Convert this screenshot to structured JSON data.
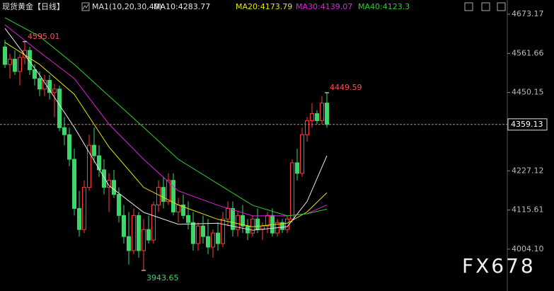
{
  "chart_data": {
    "type": "candlestick",
    "title": "现货黄金【日线】",
    "indicator": "MA1(10,20,30,40)",
    "ylim": [
      3885,
      4713.5
    ],
    "yticks": [
      {
        "value": 4673.17,
        "label": "4673.17"
      },
      {
        "value": 4561.66,
        "label": "4561.66"
      },
      {
        "value": 4450.15,
        "label": "4450.15"
      },
      {
        "value": 4227.12,
        "label": "4227.12"
      },
      {
        "value": 4115.61,
        "label": "4115.61"
      },
      {
        "value": 4004.1,
        "label": "4004.10"
      }
    ],
    "last_price": 4359.13,
    "up_color": "#ff3b3b",
    "down_color": "#3dd66b",
    "ohlc": [
      [
        4580,
        4600,
        4520,
        4530
      ],
      [
        4530,
        4560,
        4490,
        4545
      ],
      [
        4545,
        4570,
        4500,
        4510
      ],
      [
        4510,
        4560,
        4470,
        4550
      ],
      [
        4550,
        4595.01,
        4530,
        4570
      ],
      [
        4570,
        4580,
        4500,
        4515
      ],
      [
        4515,
        4530,
        4470,
        4490
      ],
      [
        4490,
        4510,
        4440,
        4460
      ],
      [
        4460,
        4500,
        4440,
        4485
      ],
      [
        4485,
        4500,
        4430,
        4450
      ],
      [
        4450,
        4475,
        4380,
        4460
      ],
      [
        4460,
        4470,
        4340,
        4350
      ],
      [
        4350,
        4380,
        4300,
        4330
      ],
      [
        4330,
        4350,
        4240,
        4260
      ],
      [
        4260,
        4290,
        4100,
        4120
      ],
      [
        4120,
        4170,
        4040,
        4060
      ],
      [
        4060,
        4200,
        4050,
        4180
      ],
      [
        4180,
        4330,
        4170,
        4300
      ],
      [
        4300,
        4350,
        4250,
        4270
      ],
      [
        4270,
        4300,
        4210,
        4230
      ],
      [
        4230,
        4260,
        4160,
        4180
      ],
      [
        4180,
        4220,
        4110,
        4200
      ],
      [
        4200,
        4230,
        4150,
        4160
      ],
      [
        4160,
        4180,
        4080,
        4100
      ],
      [
        4100,
        4130,
        4020,
        4040
      ],
      [
        4040,
        4110,
        3960,
        4000
      ],
      [
        4000,
        4120,
        3990,
        4100
      ],
      [
        4100,
        4110,
        3980,
        4000
      ],
      [
        4000,
        4090,
        3943.65,
        4060
      ],
      [
        4060,
        4100,
        4020,
        4030
      ],
      [
        4030,
        4140,
        4020,
        4130
      ],
      [
        4130,
        4200,
        4110,
        4180
      ],
      [
        4180,
        4210,
        4120,
        4140
      ],
      [
        4140,
        4220,
        4130,
        4200
      ],
      [
        4200,
        4220,
        4100,
        4110
      ],
      [
        4110,
        4150,
        4080,
        4130
      ],
      [
        4130,
        4160,
        4090,
        4100
      ],
      [
        4100,
        4140,
        4060,
        4080
      ],
      [
        4080,
        4110,
        4000,
        4020
      ],
      [
        4020,
        4080,
        4000,
        4070
      ],
      [
        4070,
        4100,
        4020,
        4040
      ],
      [
        4040,
        4090,
        3990,
        4010
      ],
      [
        4010,
        4060,
        3980,
        4050
      ],
      [
        4050,
        4080,
        4000,
        4020
      ],
      [
        4020,
        4110,
        4010,
        4090
      ],
      [
        4090,
        4140,
        4070,
        4120
      ],
      [
        4120,
        4140,
        4040,
        4060
      ],
      [
        4060,
        4110,
        4040,
        4100
      ],
      [
        4100,
        4130,
        4050,
        4070
      ],
      [
        4070,
        4090,
        4030,
        4050
      ],
      [
        4050,
        4100,
        4040,
        4090
      ],
      [
        4090,
        4120,
        4050,
        4060
      ],
      [
        4060,
        4080,
        4030,
        4070
      ],
      [
        4070,
        4110,
        4050,
        4100
      ],
      [
        4100,
        4120,
        4040,
        4050
      ],
      [
        4050,
        4090,
        4040,
        4080
      ],
      [
        4080,
        4090,
        4050,
        4060
      ],
      [
        4060,
        4100,
        4050,
        4090
      ],
      [
        4090,
        4260,
        4080,
        4250
      ],
      [
        4250,
        4290,
        4200,
        4220
      ],
      [
        4220,
        4350,
        4210,
        4330
      ],
      [
        4330,
        4380,
        4310,
        4370
      ],
      [
        4370,
        4420,
        4350,
        4390
      ],
      [
        4390,
        4400,
        4360,
        4370
      ],
      [
        4370,
        4440,
        4360,
        4420
      ],
      [
        4420,
        4449.59,
        4350,
        4359.13
      ]
    ],
    "x": [
      0,
      7,
      14,
      21,
      28,
      35,
      43,
      50,
      57,
      61,
      65
    ],
    "series": [
      {
        "name": "MA10:4283.77",
        "color": "#e8e8e8",
        "values": [
          4633,
          4500,
          4351,
          4185,
          4109,
          4075,
          4078,
          4058,
          4068,
          4140,
          4270
        ]
      },
      {
        "name": "MA20:4173.79",
        "color": "#e6e600",
        "values": [
          4593,
          4530,
          4445,
          4295,
          4180,
          4130,
          4089,
          4068,
          4078,
          4110,
          4165
        ]
      },
      {
        "name": "MA30:4139.07",
        "color": "#e020e0",
        "values": [
          4643,
          4565,
          4490,
          4360,
          4260,
          4170,
          4129,
          4099,
          4099,
          4105,
          4130
        ]
      },
      {
        "name": "MA40:4123.3",
        "color": "#2ad12a",
        "values": [
          4663,
          4610,
          4530,
          4440,
          4351,
          4260,
          4190,
          4129,
          4099,
          4105,
          4118
        ]
      }
    ],
    "annotations": [
      4595.01,
      4449.59,
      3943.65
    ],
    "watermark": "FX678"
  }
}
